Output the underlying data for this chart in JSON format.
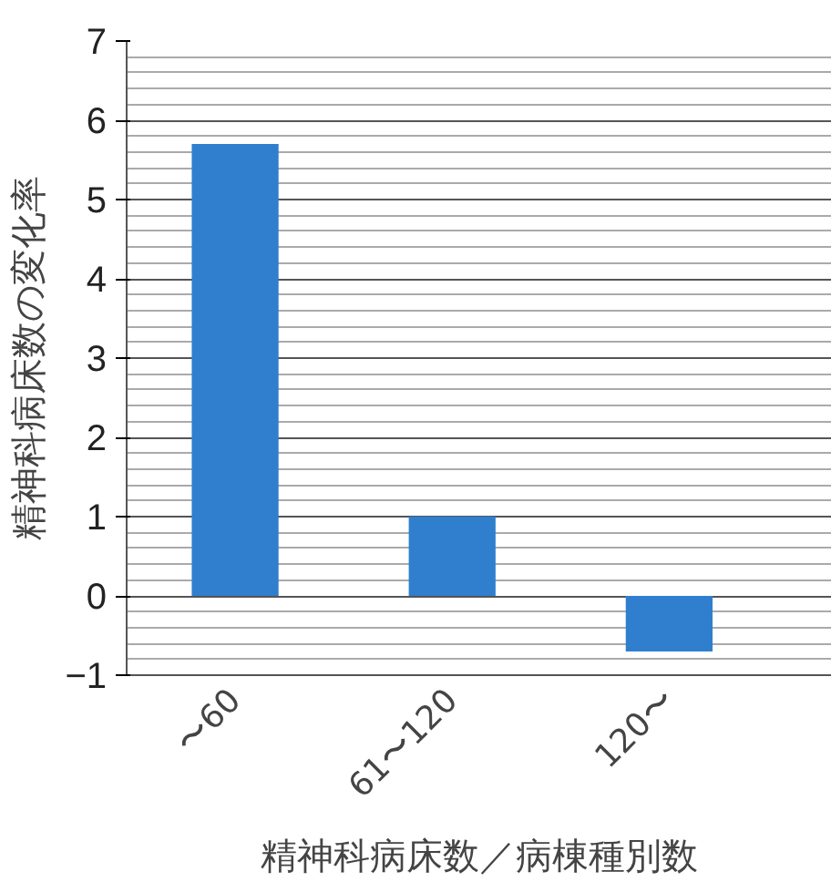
{
  "chart_data": {
    "type": "bar",
    "xlabel": "精神科病床数／病棟種別数",
    "ylabel": "精神科病床数の変化率",
    "categories": [
      "〜60",
      "61〜120",
      "120〜"
    ],
    "values": [
      5.7,
      1.0,
      -0.7
    ],
    "color": "#2f7fce",
    "ylim": [
      -1,
      7
    ],
    "yticks": [
      -1,
      0,
      1,
      2,
      3,
      4,
      5,
      6,
      7
    ],
    "grid": "y"
  }
}
